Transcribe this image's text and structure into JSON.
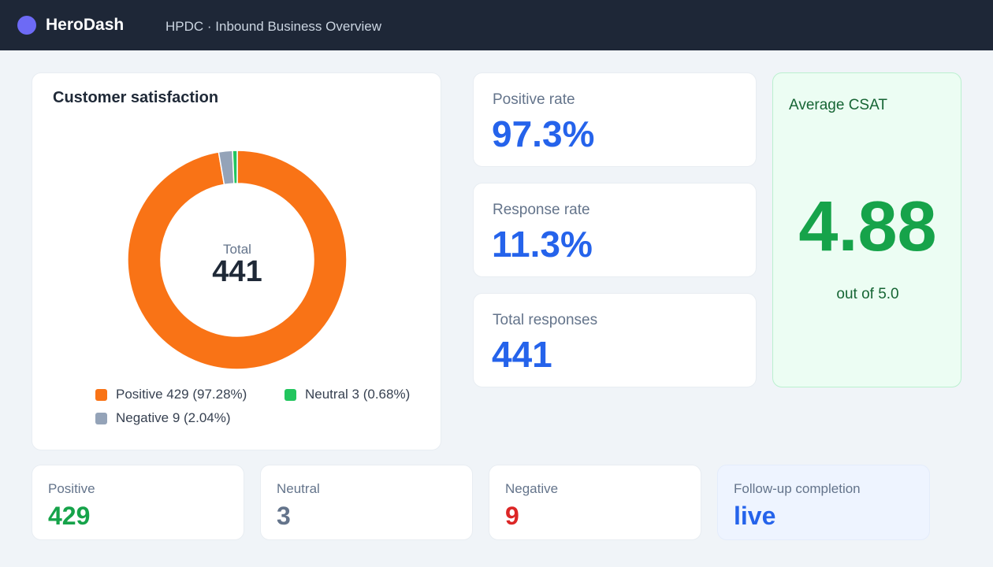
{
  "header": {
    "brand": "HeroDash",
    "title": "HPDC · Inbound Business Overview"
  },
  "satisfaction": {
    "title": "Customer satisfaction",
    "center_label": "Total",
    "center_value": "441",
    "legend": [
      {
        "text": "Positive 429 (97.28%)",
        "color": "#f97316"
      },
      {
        "text": "Neutral 3 (0.68%)",
        "color": "#22c55e"
      },
      {
        "text": "Negative 9 (2.04%)",
        "color": "#94a3b8"
      }
    ]
  },
  "chart_data": {
    "type": "pie",
    "categories": [
      "Positive",
      "Neutral",
      "Negative"
    ],
    "values": [
      429,
      3,
      9
    ],
    "percents": [
      97.28,
      0.68,
      2.04
    ],
    "colors": [
      "#f97316",
      "#22c55e",
      "#94a3b8"
    ],
    "order_clockwise_from_top": [
      "Positive",
      "Negative",
      "Neutral"
    ],
    "title": "Customer satisfaction",
    "legend_position": "bottom"
  },
  "metrics": [
    {
      "label": "Positive rate",
      "value": "97.3%"
    },
    {
      "label": "Response rate",
      "value": "11.3%"
    },
    {
      "label": "Total responses",
      "value": "441"
    }
  ],
  "average": {
    "label": "Average CSAT",
    "value": "4.88",
    "sub": "out of 5.0"
  },
  "stats": [
    {
      "label": "Positive",
      "value": "429",
      "color": "#16a34a"
    },
    {
      "label": "Neutral",
      "value": "3",
      "color": "#64748b"
    },
    {
      "label": "Negative",
      "value": "9",
      "color": "#dc2626"
    },
    {
      "label": "Follow-up completion",
      "value": "live",
      "color": "#2563eb"
    }
  ]
}
